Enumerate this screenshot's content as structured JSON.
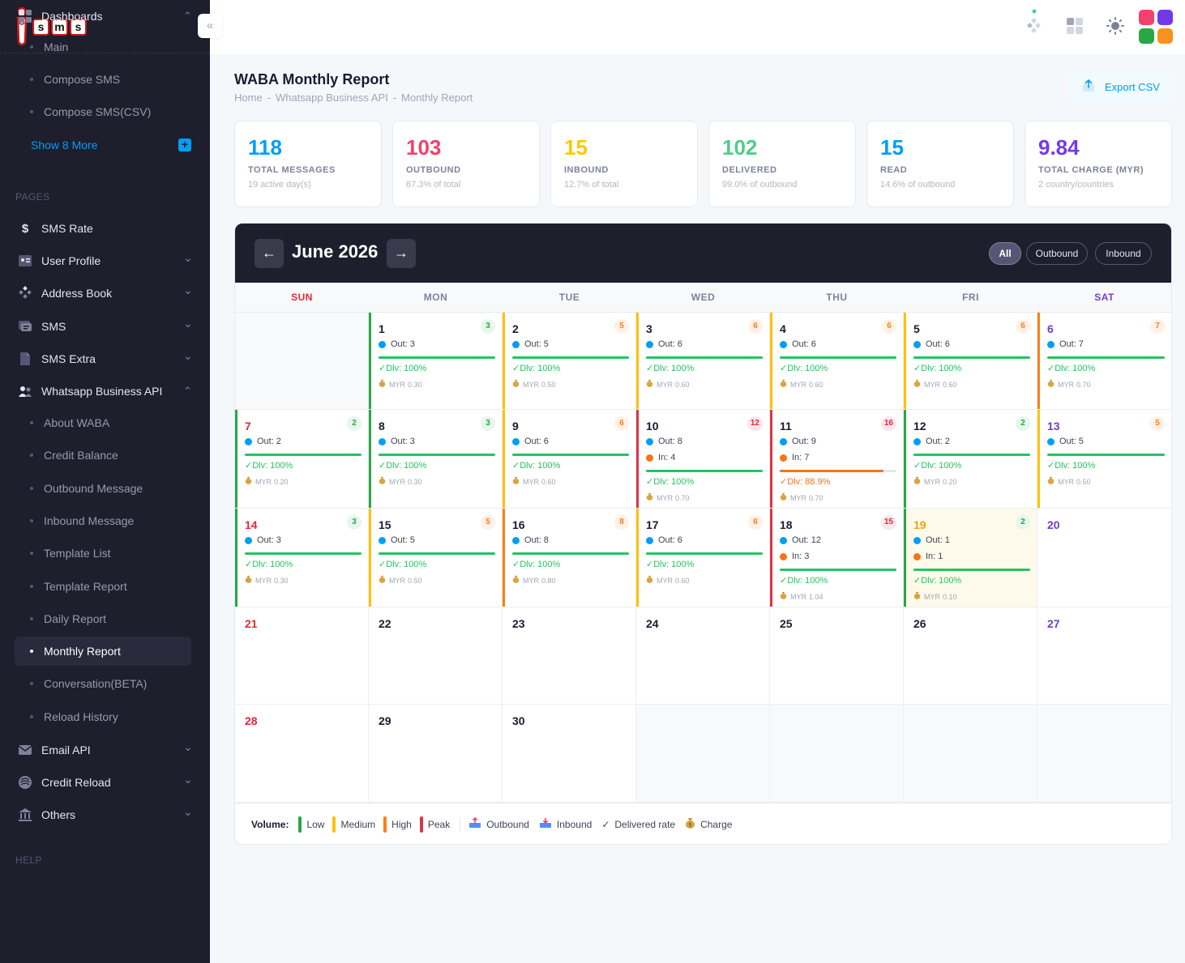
{
  "brand": {
    "logo_letters": [
      "s",
      "m",
      "s"
    ]
  },
  "sidebar": {
    "dashboards": {
      "label": "Dashboards",
      "items": [
        "Main",
        "Compose SMS",
        "Compose SMS(CSV)"
      ],
      "show_more": "Show 8 More"
    },
    "pages_heading": "PAGES",
    "items": [
      {
        "label": "SMS Rate",
        "icon": "dollar-icon"
      },
      {
        "label": "User Profile",
        "icon": "profile-icon"
      },
      {
        "label": "Address Book",
        "icon": "address-book-icon"
      },
      {
        "label": "SMS",
        "icon": "sms-icon"
      },
      {
        "label": "SMS Extra",
        "icon": "document-icon"
      },
      {
        "label": "Whatsapp Business API",
        "icon": "people-icon"
      }
    ],
    "waba_items": [
      "About WABA",
      "Credit Balance",
      "Outbound Message",
      "Inbound Message",
      "Template List",
      "Template Report",
      "Daily Report",
      "Monthly Report",
      "Conversation(BETA)",
      "Reload History"
    ],
    "active_item": "Monthly Report",
    "bottom_items": [
      {
        "label": "Email API",
        "icon": "envelope-icon"
      },
      {
        "label": "Credit Reload",
        "icon": "credit-icon"
      },
      {
        "label": "Others",
        "icon": "bank-icon"
      }
    ],
    "help_heading": "HELP"
  },
  "header": {
    "title": "WABA Monthly Report",
    "breadcrumb": [
      "Home",
      "Whatsapp Business API",
      "Monthly Report"
    ],
    "export_label": "Export CSV"
  },
  "stats": [
    {
      "value": "118",
      "label": "TOTAL MESSAGES",
      "sub": "19 active day(s)",
      "color": "#009ef7"
    },
    {
      "value": "103",
      "label": "OUTBOUND",
      "sub": "87.3% of total",
      "color": "#f1416c"
    },
    {
      "value": "15",
      "label": "INBOUND",
      "sub": "12.7% of total",
      "color": "#ffc700"
    },
    {
      "value": "102",
      "label": "DELIVERED",
      "sub": "99.0% of outbound",
      "color": "#50cd89"
    },
    {
      "value": "15",
      "label": "READ",
      "sub": "14.6% of outbound",
      "color": "#009ef7"
    },
    {
      "value": "9.84",
      "label": "TOTAL CHARGE (MYR)",
      "sub": "2 country/countries",
      "color": "#7239ea"
    }
  ],
  "calendar": {
    "month_label": "June 2026",
    "prev_label": "←",
    "next_label": "→",
    "filters": [
      "All",
      "Outbound",
      "Inbound"
    ],
    "active_filter": "All",
    "weekdays": [
      "SUN",
      "MON",
      "TUE",
      "WED",
      "THU",
      "FRI",
      "SAT"
    ],
    "first_weekday_offset": 1,
    "days_in_month": 30,
    "today": 19,
    "labels": {
      "out": "Out:",
      "in": "In:",
      "dlv": "✓Dlv:",
      "charge_prefix": "MYR"
    },
    "days": {
      "1": {
        "total": 3,
        "out": 3,
        "in": 0,
        "dlv": "100%",
        "charge": "0.30",
        "level": "low"
      },
      "2": {
        "total": 5,
        "out": 5,
        "in": 0,
        "dlv": "100%",
        "charge": "0.50",
        "level": "medium"
      },
      "3": {
        "total": 6,
        "out": 6,
        "in": 0,
        "dlv": "100%",
        "charge": "0.60",
        "level": "medium"
      },
      "4": {
        "total": 6,
        "out": 6,
        "in": 0,
        "dlv": "100%",
        "charge": "0.60",
        "level": "medium"
      },
      "5": {
        "total": 6,
        "out": 6,
        "in": 0,
        "dlv": "100%",
        "charge": "0.60",
        "level": "medium"
      },
      "6": {
        "total": 7,
        "out": 7,
        "in": 0,
        "dlv": "100%",
        "charge": "0.70",
        "level": "high"
      },
      "7": {
        "total": 2,
        "out": 2,
        "in": 0,
        "dlv": "100%",
        "charge": "0.20",
        "level": "low"
      },
      "8": {
        "total": 3,
        "out": 3,
        "in": 0,
        "dlv": "100%",
        "charge": "0.30",
        "level": "low"
      },
      "9": {
        "total": 6,
        "out": 6,
        "in": 0,
        "dlv": "100%",
        "charge": "0.60",
        "level": "medium"
      },
      "10": {
        "total": 12,
        "out": 8,
        "in": 4,
        "dlv": "100%",
        "charge": "0.70",
        "level": "peak"
      },
      "11": {
        "total": 16,
        "out": 9,
        "in": 7,
        "dlv": "88.9%",
        "charge": "0.70",
        "level": "peak"
      },
      "12": {
        "total": 2,
        "out": 2,
        "in": 0,
        "dlv": "100%",
        "charge": "0.20",
        "level": "low"
      },
      "13": {
        "total": 5,
        "out": 5,
        "in": 0,
        "dlv": "100%",
        "charge": "0.50",
        "level": "medium"
      },
      "14": {
        "total": 3,
        "out": 3,
        "in": 0,
        "dlv": "100%",
        "charge": "0.30",
        "level": "low"
      },
      "15": {
        "total": 5,
        "out": 5,
        "in": 0,
        "dlv": "100%",
        "charge": "0.50",
        "level": "medium"
      },
      "16": {
        "total": 8,
        "out": 8,
        "in": 0,
        "dlv": "100%",
        "charge": "0.80",
        "level": "high"
      },
      "17": {
        "total": 6,
        "out": 6,
        "in": 0,
        "dlv": "100%",
        "charge": "0.60",
        "level": "medium"
      },
      "18": {
        "total": 15,
        "out": 12,
        "in": 3,
        "dlv": "100%",
        "charge": "1.04",
        "level": "peak"
      },
      "19": {
        "total": 2,
        "out": 1,
        "in": 1,
        "dlv": "100%",
        "charge": "0.10",
        "level": "low"
      }
    }
  },
  "legend": {
    "volume_label": "Volume:",
    "levels": [
      {
        "label": "Low",
        "color": "#28a745"
      },
      {
        "label": "Medium",
        "color": "#ffc107"
      },
      {
        "label": "High",
        "color": "#fd7e14"
      },
      {
        "label": "Peak",
        "color": "#dc3545"
      }
    ],
    "symbols": [
      "Outbound",
      "Inbound",
      "Delivered rate",
      "Charge"
    ]
  },
  "colors": {
    "sunday": "#e1283c",
    "saturday": "#6f3fc6",
    "today": "#f59e0b",
    "out_dot": "#009ef7",
    "in_dot": "#f97316",
    "dlv_green": "#22c55e",
    "dlv_warn": "#f97316"
  }
}
